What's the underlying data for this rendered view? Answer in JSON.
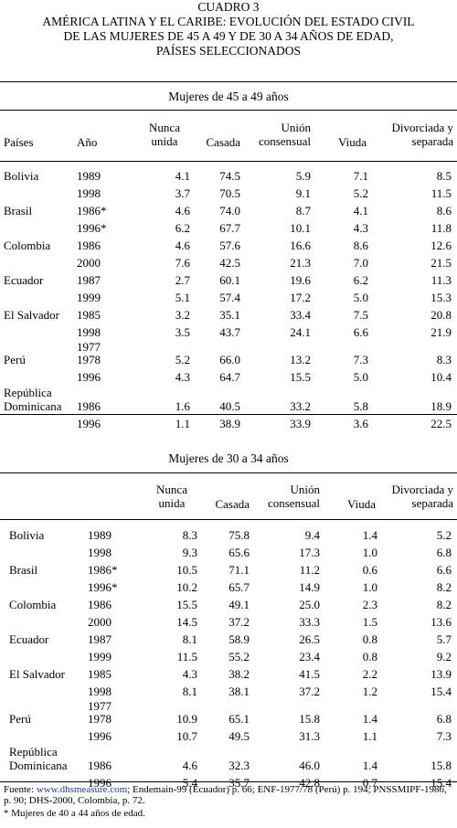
{
  "title": {
    "line1": "CUADRO 3",
    "line2": "AMÉRICA LATINA Y EL CARIBE: EVOLUCIÓN DEL ESTADO CIVIL",
    "line3": "DE LAS MUJERES DE 45 A 49 Y DE 30 A 34 AÑOS DE EDAD,",
    "line4": "PAÍSES SELECCIONADOS"
  },
  "headers": {
    "paises": "Países",
    "anio": "Año",
    "nunca_1": "Nunca",
    "nunca_2": "unida",
    "casada": "Casada",
    "union_1": "Unión",
    "union_2": "consensual",
    "viuda": "Viuda",
    "divorciada_1": "Divorciada y",
    "divorciada_2": "separada"
  },
  "table1": {
    "subtitle": "Mujeres de 45 a 49 años",
    "rows": [
      {
        "country": "Bolivia",
        "year": "1989",
        "nunca": "4.1",
        "casada": "74.5",
        "union": "5.9",
        "viuda": "7.1",
        "div": "8.5"
      },
      {
        "country": "",
        "year": "1998",
        "nunca": "3.7",
        "casada": "70.5",
        "union": "9.1",
        "viuda": "5.2",
        "div": "11.5"
      },
      {
        "country": "Brasil",
        "year": "1986*",
        "nunca": "4.6",
        "casada": "74.0",
        "union": "8.7",
        "viuda": "4.1",
        "div": "8.6"
      },
      {
        "country": "",
        "year": "1996*",
        "nunca": "6.2",
        "casada": "67.7",
        "union": "10.1",
        "viuda": "4.3",
        "div": "11.8"
      },
      {
        "country": "Colombia",
        "year": "1986",
        "nunca": "4.6",
        "casada": "57.6",
        "union": "16.6",
        "viuda": "8.6",
        "div": "12.6"
      },
      {
        "country": "",
        "year": "2000",
        "nunca": "7.6",
        "casada": "42.5",
        "union": "21.3",
        "viuda": "7.0",
        "div": "21.5"
      },
      {
        "country": "Ecuador",
        "year": "1987",
        "nunca": "2.7",
        "casada": "60.1",
        "union": "19.6",
        "viuda": "6.2",
        "div": "11.3"
      },
      {
        "country": "",
        "year": "1999",
        "nunca": "5.1",
        "casada": "57.4",
        "union": "17.2",
        "viuda": "5.0",
        "div": "15.3"
      },
      {
        "country": "El Salvador",
        "year": "1985",
        "nunca": "3.2",
        "casada": "35.1",
        "union": "33.4",
        "viuda": "7.5",
        "div": "20.8"
      },
      {
        "country": "",
        "year": "1998",
        "nunca": "3.5",
        "casada": "43.7",
        "union": "24.1",
        "viuda": "6.6",
        "div": "21.9"
      },
      {
        "country": "",
        "year": "1977",
        "nunca": "",
        "casada": "",
        "union": "",
        "viuda": "",
        "div": ""
      },
      {
        "country": "Perú",
        "year": "1978",
        "nunca": "5.2",
        "casada": "66.0",
        "union": "13.2",
        "viuda": "7.3",
        "div": "8.3"
      },
      {
        "country": "",
        "year": "1996",
        "nunca": "4.3",
        "casada": "64.7",
        "union": "15.5",
        "viuda": "5.0",
        "div": "10.4"
      },
      {
        "country": "República",
        "year": "",
        "nunca": "",
        "casada": "",
        "union": "",
        "viuda": "",
        "div": ""
      },
      {
        "country": "Dominicana",
        "year": "1986",
        "nunca": "1.6",
        "casada": "40.5",
        "union": "33.2",
        "viuda": "5.8",
        "div": "18.9"
      },
      {
        "country": "",
        "year": "1996",
        "nunca": "1.1",
        "casada": "38.9",
        "union": "33.9",
        "viuda": "3.6",
        "div": "22.5"
      }
    ]
  },
  "table2": {
    "subtitle": "Mujeres de 30 a 34 años",
    "rows": [
      {
        "country": "Bolivia",
        "year": "1989",
        "nunca": "8.3",
        "casada": "75.8",
        "union": "9.4",
        "viuda": "1.4",
        "div": "5.2"
      },
      {
        "country": "",
        "year": "1998",
        "nunca": "9.3",
        "casada": "65.6",
        "union": "17.3",
        "viuda": "1.0",
        "div": "6.8"
      },
      {
        "country": "Brasil",
        "year": "1986*",
        "nunca": "10.5",
        "casada": "71.1",
        "union": "11.2",
        "viuda": "0.6",
        "div": "6.6"
      },
      {
        "country": "",
        "year": "1996*",
        "nunca": "10.2",
        "casada": "65.7",
        "union": "14.9",
        "viuda": "1.0",
        "div": "8.2"
      },
      {
        "country": "Colombia",
        "year": "1986",
        "nunca": "15.5",
        "casada": "49.1",
        "union": "25.0",
        "viuda": "2.3",
        "div": "8.2"
      },
      {
        "country": "",
        "year": "2000",
        "nunca": "14.5",
        "casada": "37.2",
        "union": "33.3",
        "viuda": "1.5",
        "div": "13.6"
      },
      {
        "country": "Ecuador",
        "year": "1987",
        "nunca": "8.1",
        "casada": "58.9",
        "union": "26.5",
        "viuda": "0.8",
        "div": "5.7"
      },
      {
        "country": "",
        "year": "1999",
        "nunca": "11.5",
        "casada": "55.2",
        "union": "23.4",
        "viuda": "0.8",
        "div": "9.2"
      },
      {
        "country": "El Salvador",
        "year": "1985",
        "nunca": "4.3",
        "casada": "38.2",
        "union": "41.5",
        "viuda": "2.2",
        "div": "13.9"
      },
      {
        "country": "",
        "year": "1998",
        "nunca": "8.1",
        "casada": "38.1",
        "union": "37.2",
        "viuda": "1.2",
        "div": "15.4"
      },
      {
        "country": "",
        "year": "1977",
        "nunca": "",
        "casada": "",
        "union": "",
        "viuda": "",
        "div": ""
      },
      {
        "country": "Perú",
        "year": "1978",
        "nunca": "10.9",
        "casada": "65.1",
        "union": "15.8",
        "viuda": "1.4",
        "div": "6.8"
      },
      {
        "country": "",
        "year": "1996",
        "nunca": "10.7",
        "casada": "49.5",
        "union": "31.3",
        "viuda": "1.1",
        "div": "7.3"
      },
      {
        "country": "República",
        "year": "",
        "nunca": "",
        "casada": "",
        "union": "",
        "viuda": "",
        "div": ""
      },
      {
        "country": "Dominicana",
        "year": "1986",
        "nunca": "4.6",
        "casada": "32.3",
        "union": "46.0",
        "viuda": "1.4",
        "div": "15.8"
      },
      {
        "country": "",
        "year": "1996",
        "nunca": "5.4",
        "casada": "35.7",
        "union": "42.8",
        "viuda": "0.7",
        "div": "15.4"
      }
    ]
  },
  "footer": {
    "fuente_label": "Fuente: ",
    "link": "www.dhsmeasure.com",
    "fuente_rest": "; Endemain-99 (Ecuador) p. 66; ENF-1977/78 (Perú) p. 194; PNSSMIPF-1986, p. 90; DHS-2000, Colombia, p. 72.",
    "note": "* Mujeres de 40 a 44 años de edad."
  },
  "colors": {
    "link": "#1a3c9e",
    "text": "#000000"
  }
}
